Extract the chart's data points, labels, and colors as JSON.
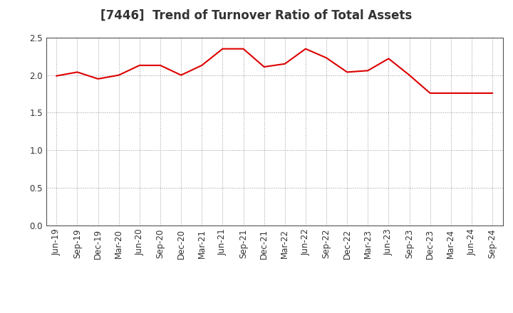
{
  "title": "[7446]  Trend of Turnover Ratio of Total Assets",
  "labels": [
    "Jun-19",
    "Sep-19",
    "Dec-19",
    "Mar-20",
    "Jun-20",
    "Sep-20",
    "Dec-20",
    "Mar-21",
    "Jun-21",
    "Sep-21",
    "Dec-21",
    "Mar-22",
    "Jun-22",
    "Sep-22",
    "Dec-22",
    "Mar-23",
    "Jun-23",
    "Sep-23",
    "Dec-23",
    "Mar-24",
    "Jun-24",
    "Sep-24"
  ],
  "values": [
    1.99,
    2.04,
    1.95,
    2.0,
    2.13,
    2.13,
    2.0,
    2.13,
    2.35,
    2.35,
    2.11,
    2.15,
    2.35,
    2.23,
    2.04,
    2.06,
    2.22,
    2.0,
    1.76,
    1.76,
    1.76,
    1.76
  ],
  "line_color": "#dd0000",
  "bg_color": "#ffffff",
  "plot_bg_color": "#ffffff",
  "grid_color": "#999999",
  "ylim": [
    0.0,
    2.5
  ],
  "yticks": [
    0.0,
    0.5,
    1.0,
    1.5,
    2.0,
    2.5
  ],
  "title_fontsize": 12,
  "tick_fontsize": 8.5,
  "title_color": "#333333"
}
